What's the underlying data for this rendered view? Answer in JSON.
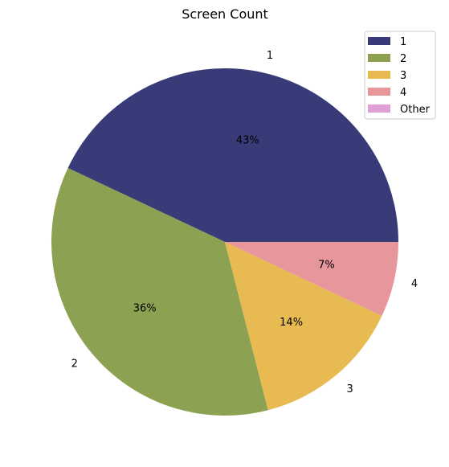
{
  "chart_data": {
    "type": "pie",
    "title": "Screen Count",
    "slices": [
      {
        "label": "1",
        "value": 43,
        "pct_label": "43%",
        "color": "#393b79"
      },
      {
        "label": "2",
        "value": 36,
        "pct_label": "36%",
        "color": "#8ca252"
      },
      {
        "label": "3",
        "value": 14,
        "pct_label": "14%",
        "color": "#e7ba52"
      },
      {
        "label": "4",
        "value": 7,
        "pct_label": "7%",
        "color": "#e7969c"
      },
      {
        "label": "Other",
        "value": 0,
        "pct_label": "",
        "color": "#de9ed6"
      }
    ],
    "start_angle_deg": 0,
    "direction": "counterclockwise",
    "legend": {
      "placement": "top-right",
      "entries": [
        "1",
        "2",
        "3",
        "4",
        "Other"
      ]
    }
  }
}
